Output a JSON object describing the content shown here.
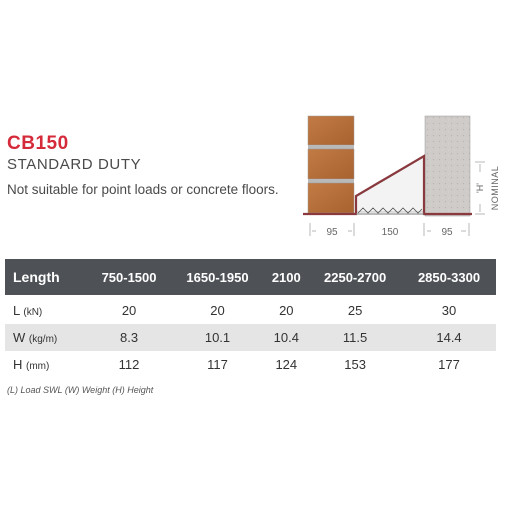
{
  "product": {
    "code": "CB150",
    "duty": "STANDARD DUTY",
    "note": "Not suitable for point loads or concrete floors."
  },
  "diagram": {
    "dim_left": "95",
    "dim_middle": "150",
    "dim_right": "95",
    "h_label": "'H'",
    "nominal_label": "NOMINAL",
    "colors": {
      "brick": "#b5703e",
      "block": "#c9c5c3",
      "lintel": "#8a3a3f"
    }
  },
  "table": {
    "headers": [
      "Length",
      "750-1500",
      "1650-1950",
      "2100",
      "2250-2700",
      "2850-3300"
    ],
    "rows": [
      {
        "label": "L",
        "unit": "(kN)",
        "values": [
          "20",
          "20",
          "20",
          "25",
          "30"
        ]
      },
      {
        "label": "W",
        "unit": "(kg/m)",
        "values": [
          "8.3",
          "10.1",
          "10.4",
          "11.5",
          "14.4"
        ]
      },
      {
        "label": "H",
        "unit": "(mm)",
        "values": [
          "112",
          "117",
          "124",
          "153",
          "177"
        ]
      }
    ]
  },
  "footnote": "(L) Load SWL (W) Weight (H) Height",
  "colors": {
    "accent": "#d42a3a",
    "header_bg": "#4e5257",
    "alt_row": "#e5e5e5"
  }
}
